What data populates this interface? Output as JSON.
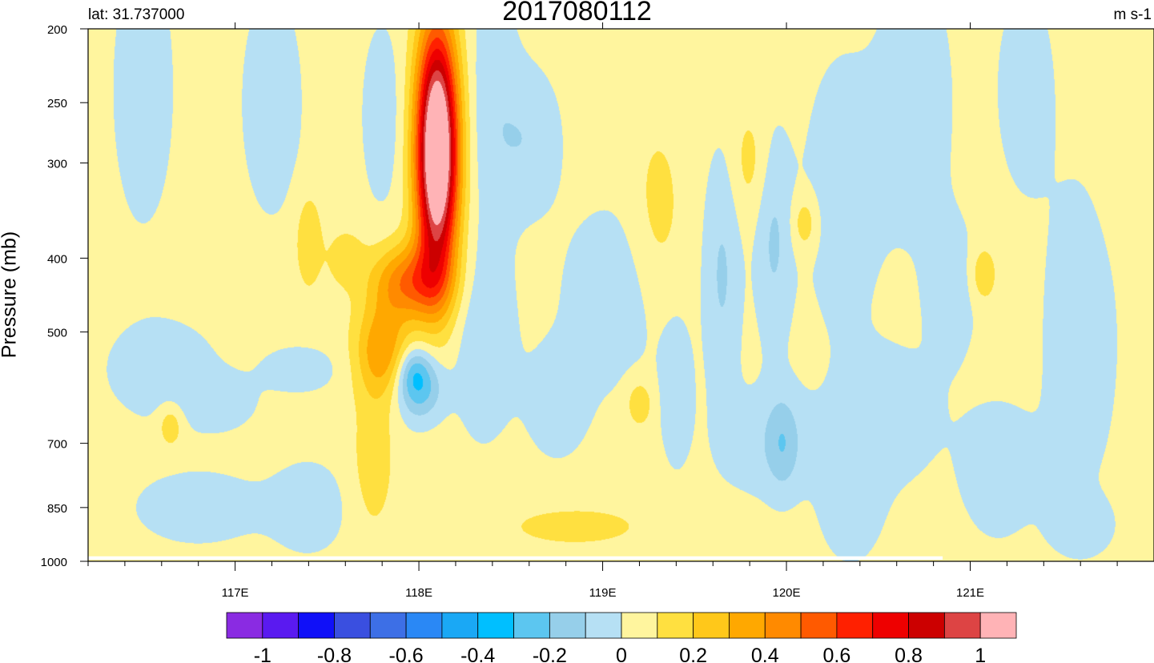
{
  "chart_data": {
    "type": "heatmap",
    "title": "2017080112",
    "left_string": "lat: 31.737000",
    "units": "m s-1",
    "ylabel": "Pressure (mb)",
    "xlabel": "",
    "xlim": [
      116.2,
      122.0
    ],
    "ylim": [
      1000,
      200
    ],
    "y_scale": "log",
    "x_ticks": [
      {
        "value": 117,
        "label": "117E"
      },
      {
        "value": 118,
        "label": "118E"
      },
      {
        "value": 119,
        "label": "119E"
      },
      {
        "value": 120,
        "label": "120E"
      },
      {
        "value": 121,
        "label": "121E"
      }
    ],
    "y_ticks": [
      {
        "value": 200,
        "label": "200"
      },
      {
        "value": 250,
        "label": "250"
      },
      {
        "value": 300,
        "label": "300"
      },
      {
        "value": 400,
        "label": "400"
      },
      {
        "value": 500,
        "label": "500"
      },
      {
        "value": 700,
        "label": "700"
      },
      {
        "value": 850,
        "label": "850"
      },
      {
        "value": 1000,
        "label": "1000"
      }
    ],
    "colorbar": {
      "orientation": "horizontal",
      "labels": [
        {
          "value": -1,
          "label": "-1"
        },
        {
          "value": -0.8,
          "label": "-0.8"
        },
        {
          "value": -0.6,
          "label": "-0.6"
        },
        {
          "value": -0.4,
          "label": "-0.4"
        },
        {
          "value": -0.2,
          "label": "-0.2"
        },
        {
          "value": 0,
          "label": "0"
        },
        {
          "value": 0.2,
          "label": "0.2"
        },
        {
          "value": 0.4,
          "label": "0.4"
        },
        {
          "value": 0.6,
          "label": "0.6"
        },
        {
          "value": 0.8,
          "label": "0.8"
        },
        {
          "value": 1,
          "label": "1"
        }
      ],
      "colors": [
        "#8a2be2",
        "#5a1af0",
        "#1010f8",
        "#3a4fe0",
        "#3d6fe6",
        "#2a88f5",
        "#1aa8f5",
        "#00bfff",
        "#5cc6f0",
        "#96cfea",
        "#b6e0f4",
        "#fff59e",
        "#ffe040",
        "#ffc81a",
        "#ffa800",
        "#ff8a00",
        "#ff5a00",
        "#ff2000",
        "#ee0000",
        "#cc0000",
        "#dd4444",
        "#ffb3b6"
      ]
    },
    "levels": [
      -1,
      -0.9,
      -0.8,
      -0.7,
      -0.6,
      -0.5,
      -0.4,
      -0.3,
      -0.2,
      -0.1,
      0,
      0.1,
      0.2,
      0.3,
      0.4,
      0.5,
      0.6,
      0.7,
      0.8,
      0.9,
      1
    ],
    "field": {
      "background": 0.04,
      "features": [
        {
          "x": 118.1,
          "p": 290,
          "sx": 0.08,
          "sp": 0.26,
          "amp": 1.35
        },
        {
          "x": 117.95,
          "p": 430,
          "sx": 0.14,
          "sp": 0.08,
          "amp": 0.45
        },
        {
          "x": 117.8,
          "p": 530,
          "sx": 0.1,
          "sp": 0.1,
          "amp": 0.35
        },
        {
          "x": 118.0,
          "p": 590,
          "sx": 0.09,
          "sp": 0.07,
          "amp": -0.32
        },
        {
          "x": 117.97,
          "p": 560,
          "sx": 0.06,
          "sp": 0.05,
          "amp": -0.15
        },
        {
          "x": 116.5,
          "p": 240,
          "sx": 0.12,
          "sp": 0.3,
          "amp": -0.1
        },
        {
          "x": 116.6,
          "p": 560,
          "sx": 0.2,
          "sp": 0.1,
          "amp": -0.12
        },
        {
          "x": 116.9,
          "p": 620,
          "sx": 0.15,
          "sp": 0.06,
          "amp": -0.1
        },
        {
          "x": 116.8,
          "p": 850,
          "sx": 0.25,
          "sp": 0.08,
          "amp": -0.1
        },
        {
          "x": 117.2,
          "p": 250,
          "sx": 0.12,
          "sp": 0.25,
          "amp": -0.1
        },
        {
          "x": 117.4,
          "p": 380,
          "sx": 0.05,
          "sp": 0.1,
          "amp": 0.15
        },
        {
          "x": 117.6,
          "p": 400,
          "sx": 0.07,
          "sp": 0.06,
          "amp": 0.12
        },
        {
          "x": 117.35,
          "p": 560,
          "sx": 0.15,
          "sp": 0.05,
          "amp": -0.1
        },
        {
          "x": 117.4,
          "p": 850,
          "sx": 0.15,
          "sp": 0.1,
          "amp": -0.1
        },
        {
          "x": 117.8,
          "p": 260,
          "sx": 0.08,
          "sp": 0.2,
          "amp": -0.1
        },
        {
          "x": 117.75,
          "p": 740,
          "sx": 0.08,
          "sp": 0.15,
          "amp": 0.12
        },
        {
          "x": 116.65,
          "p": 660,
          "sx": 0.05,
          "sp": 0.05,
          "amp": 0.15
        },
        {
          "x": 118.4,
          "p": 250,
          "sx": 0.1,
          "sp": 0.3,
          "amp": -0.1
        },
        {
          "x": 118.6,
          "p": 280,
          "sx": 0.12,
          "sp": 0.15,
          "amp": -0.12
        },
        {
          "x": 118.35,
          "p": 520,
          "sx": 0.12,
          "sp": 0.2,
          "amp": -0.12
        },
        {
          "x": 118.75,
          "p": 620,
          "sx": 0.12,
          "sp": 0.12,
          "amp": -0.1
        },
        {
          "x": 118.85,
          "p": 900,
          "sx": 0.25,
          "sp": 0.04,
          "amp": 0.12
        },
        {
          "x": 119.05,
          "p": 450,
          "sx": 0.2,
          "sp": 0.2,
          "amp": -0.1
        },
        {
          "x": 119.2,
          "p": 620,
          "sx": 0.05,
          "sp": 0.05,
          "amp": 0.15
        },
        {
          "x": 119.3,
          "p": 350,
          "sx": 0.1,
          "sp": 0.2,
          "amp": 0.1
        },
        {
          "x": 119.4,
          "p": 600,
          "sx": 0.06,
          "sp": 0.15,
          "amp": -0.12
        },
        {
          "x": 119.65,
          "p": 420,
          "sx": 0.07,
          "sp": 0.25,
          "amp": -0.15
        },
        {
          "x": 119.8,
          "p": 300,
          "sx": 0.07,
          "sp": 0.12,
          "amp": 0.1
        },
        {
          "x": 119.9,
          "p": 700,
          "sx": 0.2,
          "sp": 0.12,
          "amp": -0.1
        },
        {
          "x": 119.93,
          "p": 380,
          "sx": 0.07,
          "sp": 0.22,
          "amp": -0.15
        },
        {
          "x": 120.1,
          "p": 360,
          "sx": 0.05,
          "sp": 0.06,
          "amp": 0.15
        },
        {
          "x": 119.98,
          "p": 700,
          "sx": 0.06,
          "sp": 0.1,
          "amp": -0.15
        },
        {
          "x": 120.3,
          "p": 330,
          "sx": 0.15,
          "sp": 0.3,
          "amp": -0.1
        },
        {
          "x": 120.35,
          "p": 850,
          "sx": 0.12,
          "sp": 0.12,
          "amp": -0.1
        },
        {
          "x": 120.7,
          "p": 250,
          "sx": 0.15,
          "sp": 0.3,
          "amp": -0.1
        },
        {
          "x": 120.55,
          "p": 650,
          "sx": 0.2,
          "sp": 0.15,
          "amp": -0.1
        },
        {
          "x": 120.9,
          "p": 440,
          "sx": 0.1,
          "sp": 0.15,
          "amp": -0.1
        },
        {
          "x": 121.07,
          "p": 420,
          "sx": 0.05,
          "sp": 0.06,
          "amp": 0.15
        },
        {
          "x": 121.3,
          "p": 240,
          "sx": 0.1,
          "sp": 0.2,
          "amp": -0.12
        },
        {
          "x": 121.6,
          "p": 500,
          "sx": 0.15,
          "sp": 0.35,
          "amp": -0.1
        },
        {
          "x": 121.15,
          "p": 760,
          "sx": 0.15,
          "sp": 0.15,
          "amp": -0.1
        },
        {
          "x": 121.6,
          "p": 900,
          "sx": 0.12,
          "sp": 0.06,
          "amp": -0.1
        },
        {
          "x": 121.85,
          "p": 260,
          "sx": 0.12,
          "sp": 0.25,
          "amp": 0.05
        }
      ]
    },
    "missing_strip": {
      "p_range": [
        985,
        1000
      ],
      "x_range": [
        116.2,
        120.85
      ]
    }
  }
}
